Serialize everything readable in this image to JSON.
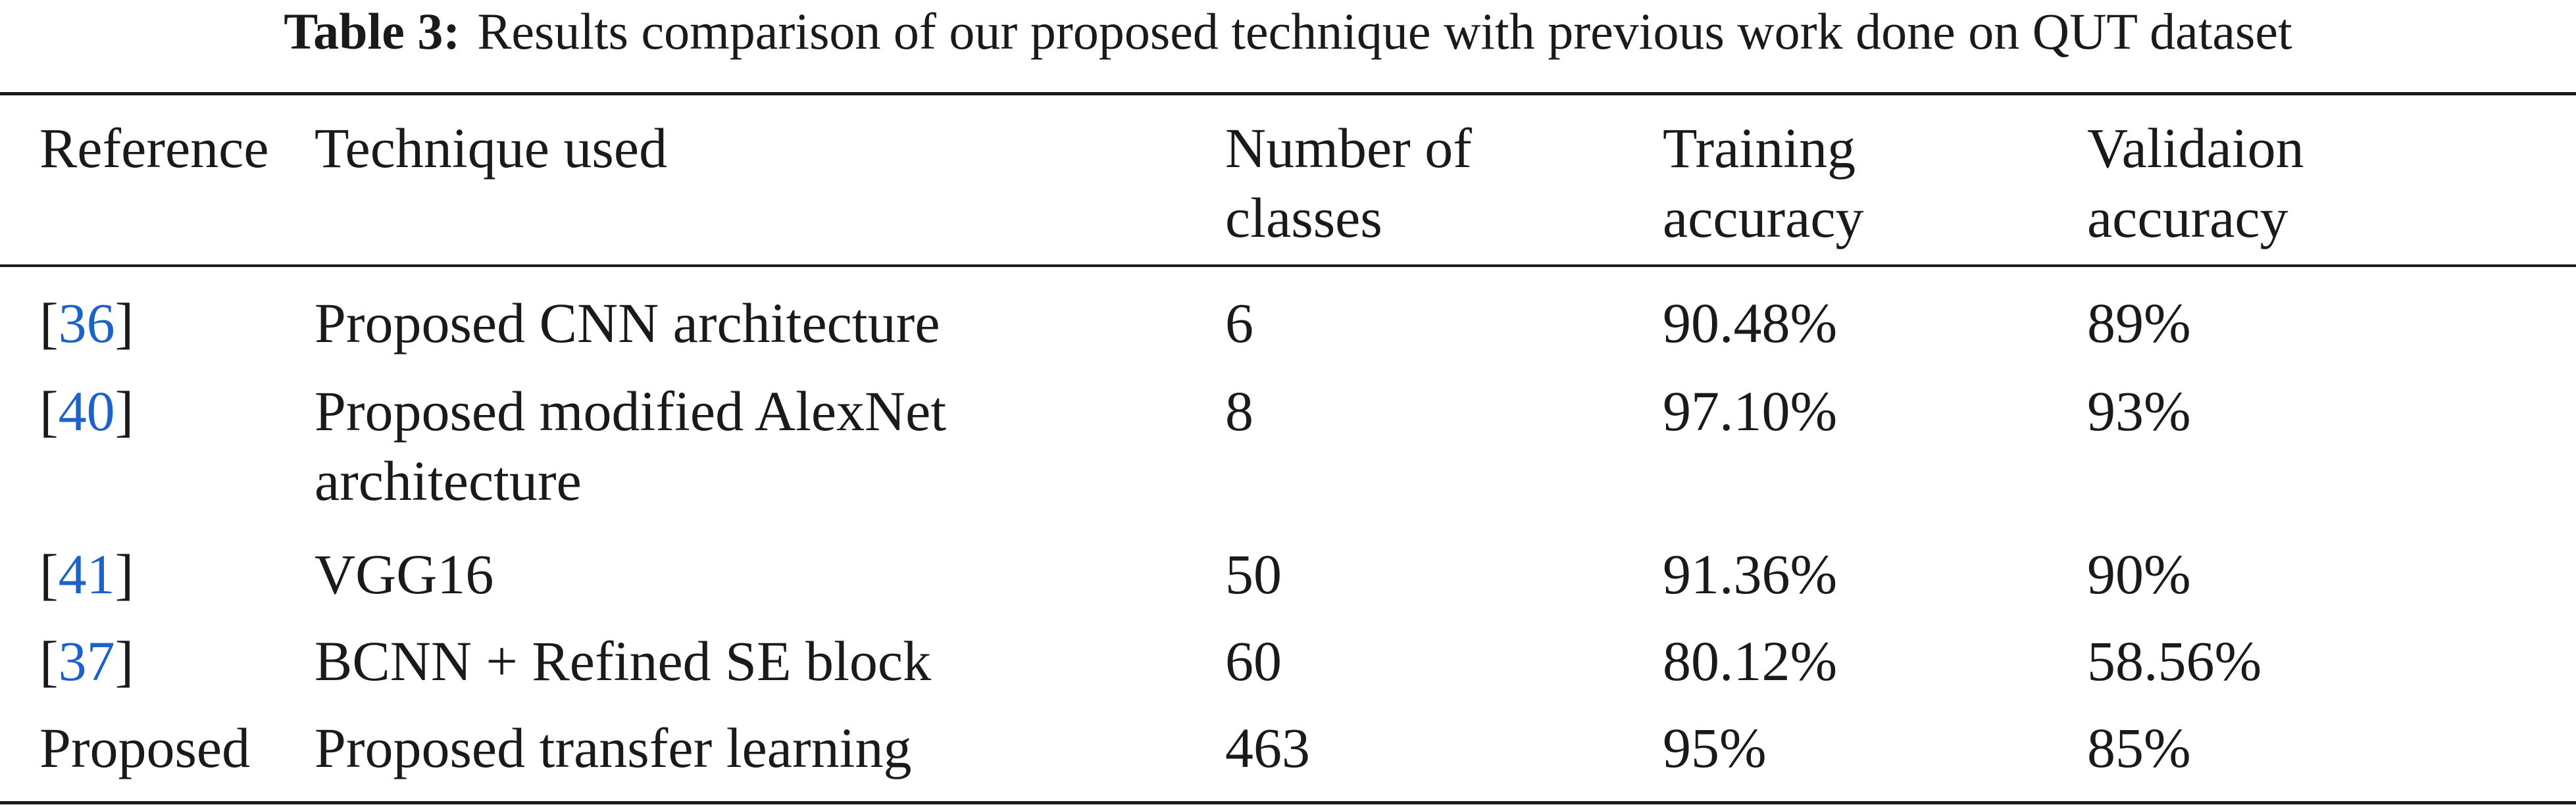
{
  "caption": {
    "label": "Table 3:",
    "text": "Results comparison of our proposed technique with previous work done on QUT dataset"
  },
  "table": {
    "headers": {
      "reference": "Reference",
      "technique": "Technique used",
      "classes_line1": "Number of",
      "classes_line2": "classes",
      "training_line1": "Training",
      "training_line2": "accuracy",
      "validation_line1": "Validaion",
      "validation_line2": "accuracy"
    },
    "rows": [
      {
        "ref_open": "[",
        "ref_num": "36",
        "ref_close": "]",
        "technique": "Proposed CNN architecture",
        "classes": "6",
        "training": "90.48%",
        "validation": "89%"
      },
      {
        "ref_open": "[",
        "ref_num": "40",
        "ref_close": "]",
        "technique_line1": "Proposed modified AlexNet",
        "technique_line2": "architecture",
        "classes": "8",
        "training": "97.10%",
        "validation": "93%"
      },
      {
        "ref_open": "[",
        "ref_num": "41",
        "ref_close": "]",
        "technique": "VGG16",
        "classes": "50",
        "training": "91.36%",
        "validation": "90%"
      },
      {
        "ref_open": "[",
        "ref_num": "37",
        "ref_close": "]",
        "technique": "BCNN + Refined SE block",
        "classes": "60",
        "training": "80.12%",
        "validation": "58.56%"
      },
      {
        "ref": "Proposed",
        "technique": "Proposed transfer learning",
        "classes": "463",
        "training": "95%",
        "validation": "85%"
      }
    ]
  },
  "colors": {
    "text": "#1a1a1a",
    "reference_link": "#1d63c7"
  }
}
